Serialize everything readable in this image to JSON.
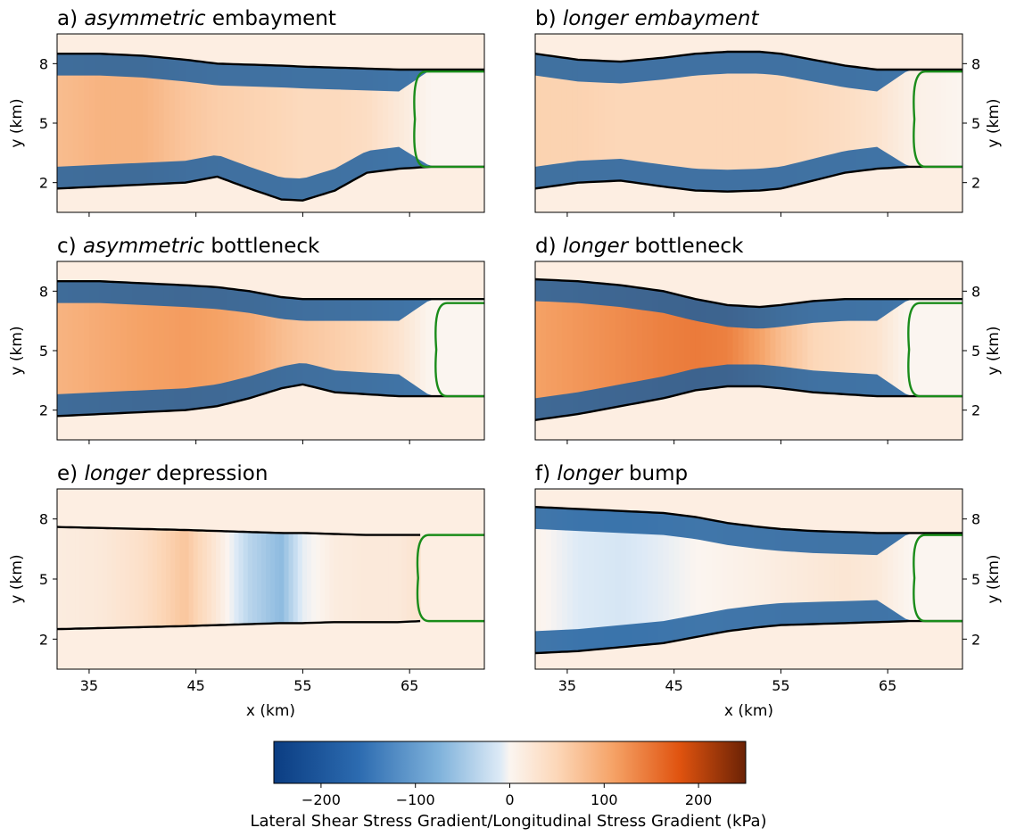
{
  "chart_data": {
    "type": "heatmap",
    "panels": [
      {
        "id": "a",
        "title_prefix": "a)",
        "title_italic": "asymmetric",
        "title_rest": "embayment",
        "italic_first": false,
        "x": [
          32,
          36,
          40,
          44,
          47,
          50,
          53,
          55,
          58,
          61,
          64,
          67,
          72
        ],
        "top_edge": [
          8.5,
          8.5,
          8.4,
          8.2,
          8.0,
          7.95,
          7.9,
          7.85,
          7.8,
          7.75,
          7.7,
          7.7,
          7.7
        ],
        "bottom_edge": [
          1.7,
          1.8,
          1.9,
          2.0,
          2.3,
          1.7,
          1.15,
          1.1,
          1.6,
          2.5,
          2.7,
          2.8,
          2.8
        ],
        "front_x": 65.5,
        "front_y": [
          2.8,
          7.6
        ],
        "interior_shear_kpa": [
          80,
          90,
          90,
          70,
          60,
          55,
          50,
          45,
          45,
          40,
          20,
          0,
          0
        ]
      },
      {
        "id": "b",
        "title_prefix": "b)",
        "title_italic": "longer embayment",
        "title_rest": "",
        "italic_first": false,
        "x": [
          32,
          36,
          40,
          44,
          47,
          50,
          53,
          55,
          58,
          61,
          64,
          67,
          72
        ],
        "top_edge": [
          8.5,
          8.2,
          8.1,
          8.3,
          8.5,
          8.6,
          8.6,
          8.5,
          8.2,
          7.9,
          7.7,
          7.7,
          7.7
        ],
        "bottom_edge": [
          1.7,
          2.0,
          2.1,
          1.8,
          1.6,
          1.55,
          1.6,
          1.7,
          2.1,
          2.5,
          2.7,
          2.8,
          2.8
        ],
        "front_x": 67.5,
        "front_y": [
          2.8,
          7.6
        ],
        "interior_shear_kpa": [
          55,
          55,
          50,
          50,
          50,
          50,
          50,
          50,
          45,
          40,
          30,
          10,
          0
        ]
      },
      {
        "id": "c",
        "title_prefix": "c)",
        "title_italic": "asymmetric",
        "title_rest": "bottleneck",
        "italic_first": false,
        "x": [
          32,
          36,
          40,
          44,
          47,
          50,
          53,
          55,
          58,
          61,
          64,
          67,
          72
        ],
        "top_edge": [
          8.5,
          8.5,
          8.4,
          8.3,
          8.2,
          8.0,
          7.7,
          7.6,
          7.6,
          7.6,
          7.6,
          7.6,
          7.6
        ],
        "bottom_edge": [
          1.7,
          1.8,
          1.9,
          2.0,
          2.2,
          2.6,
          3.1,
          3.3,
          2.9,
          2.8,
          2.7,
          2.7,
          2.7
        ],
        "front_x": 67.5,
        "front_y": [
          2.7,
          7.4
        ],
        "interior_shear_kpa": [
          90,
          100,
          110,
          115,
          110,
          100,
          80,
          70,
          60,
          50,
          30,
          0,
          0
        ]
      },
      {
        "id": "d",
        "title_prefix": "d)",
        "title_italic": "longer",
        "title_rest": "bottleneck",
        "italic_first": false,
        "x": [
          32,
          36,
          40,
          44,
          47,
          50,
          53,
          55,
          58,
          61,
          64,
          67,
          72
        ],
        "top_edge": [
          8.6,
          8.5,
          8.3,
          8.0,
          7.6,
          7.3,
          7.2,
          7.3,
          7.5,
          7.6,
          7.6,
          7.6,
          7.6
        ],
        "bottom_edge": [
          1.5,
          1.8,
          2.2,
          2.6,
          3.0,
          3.2,
          3.2,
          3.1,
          2.9,
          2.8,
          2.7,
          2.7,
          2.7
        ],
        "front_x": 67.0,
        "front_y": [
          2.7,
          7.4
        ],
        "interior_shear_kpa": [
          110,
          120,
          130,
          140,
          145,
          140,
          110,
          80,
          50,
          40,
          30,
          0,
          0
        ]
      },
      {
        "id": "e",
        "title_prefix": "e)",
        "title_italic": "longer",
        "title_rest": "depression",
        "italic_first": false,
        "x": [
          32,
          36,
          40,
          44,
          47,
          50,
          53,
          55,
          58,
          61,
          64,
          66
        ],
        "top_edge": [
          7.6,
          7.55,
          7.5,
          7.45,
          7.4,
          7.35,
          7.3,
          7.3,
          7.25,
          7.2,
          7.2,
          7.2
        ],
        "bottom_edge": [
          2.5,
          2.55,
          2.6,
          2.65,
          2.7,
          2.75,
          2.8,
          2.8,
          2.85,
          2.85,
          2.85,
          2.9
        ],
        "front_x": 65.8,
        "front_y": [
          2.9,
          7.2
        ],
        "interior_shear_kpa": [
          15,
          20,
          35,
          70,
          20,
          -40,
          -70,
          -10,
          15,
          20,
          20,
          30
        ]
      },
      {
        "id": "f",
        "title_prefix": "f)",
        "title_italic": "longer",
        "title_rest": "bump",
        "italic_first": false,
        "x": [
          32,
          36,
          40,
          44,
          47,
          50,
          53,
          55,
          58,
          61,
          64,
          67,
          72
        ],
        "top_edge": [
          8.6,
          8.5,
          8.4,
          8.3,
          8.1,
          7.8,
          7.6,
          7.5,
          7.4,
          7.35,
          7.3,
          7.3,
          7.3
        ],
        "bottom_edge": [
          1.3,
          1.4,
          1.6,
          1.8,
          2.1,
          2.4,
          2.6,
          2.7,
          2.75,
          2.8,
          2.85,
          2.9,
          2.9
        ],
        "front_x": 67.5,
        "front_y": [
          2.9,
          7.2
        ],
        "interior_shear_kpa": [
          5,
          -15,
          -20,
          -10,
          0,
          5,
          10,
          15,
          20,
          25,
          20,
          0,
          0
        ]
      }
    ],
    "xlim": [
      32,
      72
    ],
    "ylim": [
      0.5,
      9.5
    ],
    "xticks": [
      "35",
      "45",
      "55",
      "65"
    ],
    "xtick_values": [
      35,
      45,
      55,
      65
    ],
    "yticks": [
      "2",
      "5",
      "8"
    ],
    "ytick_values": [
      2,
      5,
      8
    ],
    "xlabel": "x (km)",
    "ylabel": "y (km)",
    "colorbar": {
      "label": "Lateral Shear Stress Gradient/Longitudinal Stress Gradient (kPa)",
      "range": [
        -250,
        250
      ],
      "ticks": [
        "−200",
        "−100",
        "0",
        "100",
        "200"
      ],
      "tick_values": [
        -200,
        -100,
        0,
        100,
        200
      ]
    },
    "colors": {
      "domain_edge": "#000000",
      "calving_front": "#1a8c1a",
      "margin_shear": "#1f5f9e",
      "background": "#fdeee2"
    }
  }
}
